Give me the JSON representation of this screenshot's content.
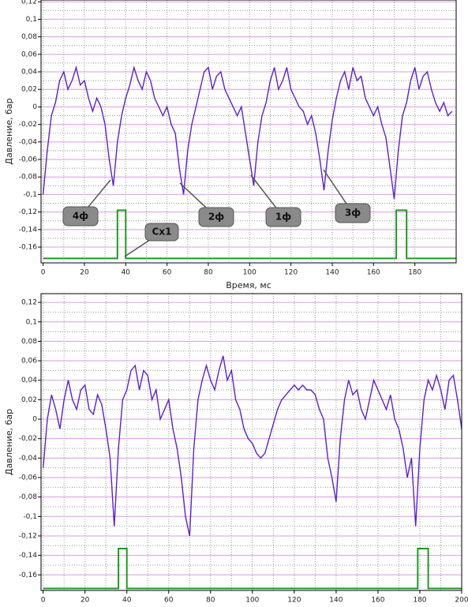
{
  "chart_data": [
    {
      "type": "line",
      "y_label": "Давление, бар",
      "x_label": "Время, мс",
      "xlim": [
        -1,
        200
      ],
      "ylim": [
        -0.178,
        0.122
      ],
      "xticks": [
        0,
        20,
        40,
        60,
        80,
        100,
        120,
        140,
        160,
        180
      ],
      "yticks": [
        {
          "value": 0.12,
          "label": "0,12"
        },
        {
          "value": 0.1,
          "label": "0,1"
        },
        {
          "value": 0.08,
          "label": "0,08"
        },
        {
          "value": 0.06,
          "label": "0,06"
        },
        {
          "value": 0.04,
          "label": "0,04"
        },
        {
          "value": 0.02,
          "label": "0,02"
        },
        0,
        {
          "value": -0.02,
          "label": "-0,02"
        },
        {
          "value": -0.04,
          "label": "-0,04"
        },
        {
          "value": -0.06,
          "label": "-0,06"
        },
        {
          "value": -0.08,
          "label": "-0,08"
        },
        {
          "value": -0.1,
          "label": "-0,1"
        },
        {
          "value": -0.12,
          "label": "-0,12"
        },
        {
          "value": -0.14,
          "label": "-0,14"
        },
        {
          "value": -0.16,
          "label": "-0,16"
        }
      ],
      "grid": true,
      "annotations": [
        "4ф",
        "2ф",
        "1ф",
        "3ф",
        "Cx1"
      ],
      "series": [
        {
          "color": "#5b22c9",
          "x": [
            0,
            2,
            4,
            6,
            8,
            10,
            12,
            14,
            16,
            18,
            20,
            22,
            24,
            26,
            28,
            30,
            32,
            34,
            36,
            38,
            40,
            42,
            44,
            46,
            48,
            50,
            52,
            54,
            56,
            58,
            60,
            62,
            64,
            66,
            68,
            70,
            72,
            74,
            76,
            78,
            80,
            82,
            84,
            86,
            88,
            90,
            92,
            94,
            96,
            98,
            100,
            102,
            104,
            106,
            108,
            110,
            112,
            114,
            116,
            118,
            120,
            122,
            124,
            126,
            128,
            130,
            132,
            134,
            136,
            138,
            140,
            142,
            144,
            146,
            148,
            150,
            152,
            154,
            156,
            158,
            160,
            162,
            164,
            166,
            168,
            170,
            172,
            174,
            176,
            178,
            180,
            182,
            184,
            186,
            188,
            190,
            192,
            194,
            196,
            198
          ],
          "values": [
            -0.1,
            -0.05,
            -0.01,
            0.005,
            0.03,
            0.04,
            0.02,
            0.03,
            0.045,
            0.025,
            0.03,
            0.01,
            -0.005,
            0.01,
            0.0,
            -0.02,
            -0.06,
            -0.09,
            -0.04,
            -0.01,
            0.01,
            0.025,
            0.045,
            0.03,
            0.02,
            0.04,
            0.03,
            0.01,
            0.0,
            -0.01,
            0.0,
            -0.02,
            -0.03,
            -0.07,
            -0.1,
            -0.05,
            -0.02,
            0.0,
            0.02,
            0.04,
            0.045,
            0.02,
            0.035,
            0.04,
            0.02,
            0.01,
            0.0,
            -0.01,
            0.0,
            -0.03,
            -0.06,
            -0.09,
            -0.04,
            -0.01,
            0.005,
            0.03,
            0.045,
            0.02,
            0.03,
            0.045,
            0.02,
            0.01,
            0.0,
            -0.005,
            -0.02,
            -0.01,
            -0.03,
            -0.06,
            -0.095,
            -0.05,
            -0.015,
            0.01,
            0.03,
            0.04,
            0.02,
            0.045,
            0.03,
            0.035,
            0.01,
            0.0,
            -0.01,
            0.0,
            -0.02,
            -0.035,
            -0.07,
            -0.105,
            -0.05,
            -0.01,
            0.005,
            0.03,
            0.045,
            0.02,
            0.035,
            0.04,
            0.02,
            0.005,
            -0.005,
            0.005,
            -0.01,
            -0.005
          ]
        },
        {
          "color": "#1f9a1f",
          "x": [
            0,
            36,
            36,
            40,
            40,
            171,
            171,
            176,
            176,
            200
          ],
          "values": [
            -0.173,
            -0.173,
            -0.118,
            -0.118,
            -0.173,
            -0.173,
            -0.118,
            -0.118,
            -0.173,
            -0.173
          ]
        }
      ]
    },
    {
      "type": "line",
      "y_label": "Давление, бар",
      "xlim": [
        -1,
        200
      ],
      "ylim": [
        -0.176,
        0.129
      ],
      "xticks": [
        0,
        20,
        40,
        60,
        80,
        100,
        120,
        140,
        160,
        180,
        200
      ],
      "yticks": [
        {
          "value": 0.12,
          "label": "0,12"
        },
        {
          "value": 0.1,
          "label": "0,1"
        },
        {
          "value": 0.08,
          "label": "0,08"
        },
        {
          "value": 0.06,
          "label": "0,06"
        },
        {
          "value": 0.04,
          "label": "0,04"
        },
        {
          "value": 0.02,
          "label": "0,02"
        },
        0,
        {
          "value": -0.02,
          "label": "-0,02"
        },
        {
          "value": -0.04,
          "label": "-0,04"
        },
        {
          "value": -0.06,
          "label": "-0,06"
        },
        {
          "value": -0.08,
          "label": "-0,08"
        },
        {
          "value": -0.1,
          "label": "-0,1"
        },
        {
          "value": -0.12,
          "label": "-0,12"
        },
        {
          "value": -0.14,
          "label": "-0,14"
        },
        {
          "value": -0.16,
          "label": "-0,16"
        }
      ],
      "grid": true,
      "series": [
        {
          "color": "#5b22c9",
          "x": [
            0,
            2,
            4,
            6,
            8,
            10,
            12,
            14,
            16,
            18,
            20,
            22,
            24,
            26,
            28,
            30,
            32,
            34,
            36,
            38,
            40,
            42,
            44,
            46,
            48,
            50,
            52,
            54,
            56,
            58,
            60,
            62,
            64,
            66,
            68,
            70,
            72,
            74,
            76,
            78,
            80,
            82,
            84,
            86,
            88,
            90,
            92,
            94,
            96,
            98,
            100,
            102,
            104,
            106,
            108,
            110,
            112,
            114,
            116,
            118,
            120,
            122,
            124,
            126,
            128,
            130,
            132,
            134,
            136,
            138,
            140,
            142,
            144,
            146,
            148,
            150,
            152,
            154,
            156,
            158,
            160,
            162,
            164,
            166,
            168,
            170,
            172,
            174,
            176,
            178,
            180,
            182,
            184,
            186,
            188,
            190,
            192,
            194,
            196,
            198,
            200
          ],
          "values": [
            -0.05,
            0.0,
            0.025,
            0.01,
            -0.01,
            0.02,
            0.04,
            0.02,
            0.01,
            0.03,
            0.035,
            0.01,
            0.005,
            0.025,
            0.015,
            -0.01,
            -0.04,
            -0.11,
            -0.03,
            0.02,
            0.03,
            0.05,
            0.055,
            0.03,
            0.05,
            0.045,
            0.02,
            0.03,
            0.0,
            0.01,
            0.02,
            -0.01,
            -0.03,
            -0.06,
            -0.1,
            -0.12,
            -0.03,
            0.02,
            0.04,
            0.055,
            0.04,
            0.03,
            0.05,
            0.065,
            0.04,
            0.05,
            0.02,
            0.01,
            -0.01,
            -0.02,
            -0.025,
            -0.035,
            -0.04,
            -0.035,
            -0.02,
            -0.005,
            0.01,
            0.02,
            0.025,
            0.03,
            0.035,
            0.03,
            0.035,
            0.03,
            0.03,
            0.025,
            0.01,
            0.0,
            -0.04,
            -0.06,
            -0.085,
            -0.02,
            0.02,
            0.04,
            0.025,
            0.03,
            0.01,
            0.0,
            0.02,
            0.04,
            0.03,
            0.02,
            0.01,
            0.025,
            0.0,
            -0.01,
            -0.03,
            -0.06,
            -0.04,
            -0.11,
            -0.03,
            0.02,
            0.04,
            0.03,
            0.045,
            0.03,
            0.01,
            0.04,
            0.045,
            0.02,
            -0.01
          ]
        },
        {
          "color": "#1f9a1f",
          "x": [
            0,
            36,
            36,
            40,
            40,
            179,
            179,
            184,
            184,
            200
          ],
          "values": [
            -0.174,
            -0.174,
            -0.133,
            -0.133,
            -0.174,
            -0.174,
            -0.133,
            -0.133,
            -0.174,
            -0.174
          ]
        }
      ]
    }
  ]
}
